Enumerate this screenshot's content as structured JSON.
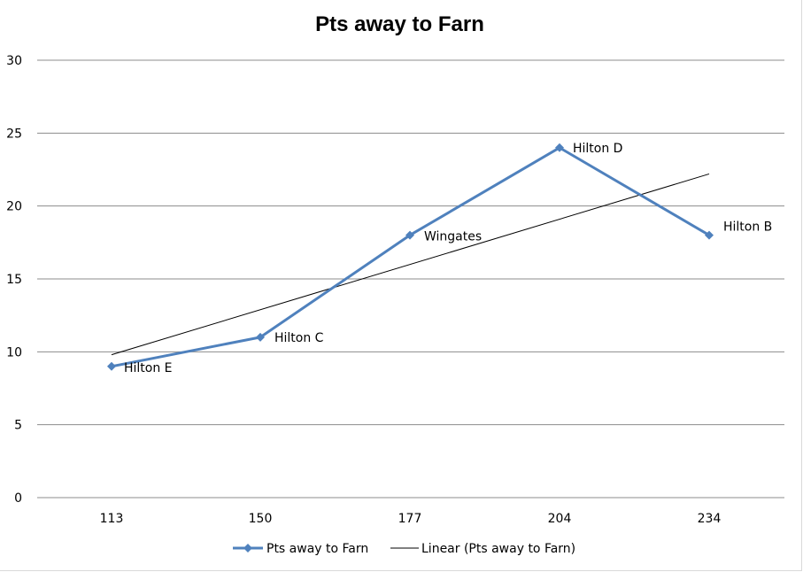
{
  "chart_data": {
    "type": "line",
    "title": "Pts away to Farn",
    "xlabel": "",
    "ylabel": "",
    "categories": [
      "113",
      "150",
      "177",
      "204",
      "234"
    ],
    "series": [
      {
        "name": "Pts away to Farn",
        "values": [
          9,
          11,
          18,
          24,
          18
        ],
        "point_labels": [
          "Hilton E",
          "Hilton C",
          "Wingates",
          "Hilton D",
          "Hilton B"
        ],
        "color": "#4F81BD",
        "marker": "diamond"
      }
    ],
    "trendline": {
      "name": "Linear (Pts away to Farn)",
      "type": "linear",
      "color": "#000000"
    },
    "ylim": [
      0,
      30
    ],
    "yticks": [
      0,
      5,
      10,
      15,
      20,
      25,
      30
    ],
    "grid": true,
    "legend": "bottom"
  }
}
